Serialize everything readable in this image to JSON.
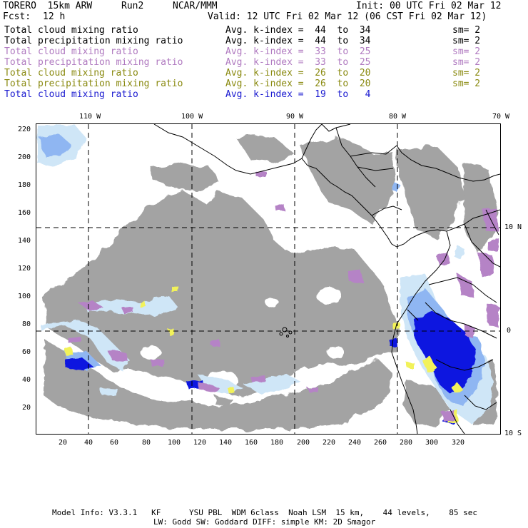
{
  "header": {
    "model": "TORERO  15km ARW",
    "run": "Run2",
    "org": "NCAR/MMM",
    "init": "Init: 00 UTC Fri 02 Mar 12",
    "fcst_label": "Fcst:",
    "fcst_value": "12 h",
    "valid": "Valid: 12 UTC Fri 02 Mar 12 (06 CST Fri 02 Mar 12)"
  },
  "legend": [
    {
      "variable": "Total cloud mixing ratio",
      "avg": "Avg. k-index =  44  to  34",
      "sm": "sm= 2",
      "color": "#000000"
    },
    {
      "variable": "Total precipitation mixing ratio",
      "avg": "Avg. k-index =  44  to  34",
      "sm": "sm= 2",
      "color": "#000000"
    },
    {
      "variable": "Total cloud mixing ratio",
      "avg": "Avg. k-index =  33  to  25",
      "sm": "sm= 2",
      "color": "#b07ac0"
    },
    {
      "variable": "Total precipitation mixing ratio",
      "avg": "Avg. k-index =  33  to  25",
      "sm": "sm= 2",
      "color": "#b07ac0"
    },
    {
      "variable": "Total cloud mixing ratio",
      "avg": "Avg. k-index =  26  to  20",
      "sm": "sm= 2",
      "color": "#8a8a10"
    },
    {
      "variable": "Total precipitation mixing ratio",
      "avg": "Avg. k-index =  26  to  20",
      "sm": "sm= 2",
      "color": "#8a8a10"
    },
    {
      "variable": "Total cloud mixing ratio",
      "avg": "Avg. k-index =  19  to   4",
      "sm": "",
      "color": "#1a1ad0"
    }
  ],
  "map": {
    "top_axis": [
      "110 W",
      "100 W",
      "90 W",
      "80 W",
      "70 W"
    ],
    "right_axis": [
      "10 N",
      "0",
      "10 S"
    ],
    "left_axis": [
      "220",
      "200",
      "180",
      "160",
      "140",
      "120",
      "100",
      "80",
      "60",
      "40",
      "20"
    ],
    "bottom_axis": [
      "20",
      "40",
      "60",
      "80",
      "100",
      "120",
      "140",
      "160",
      "180",
      "200",
      "220",
      "240",
      "260",
      "280",
      "300",
      "320"
    ],
    "colors": {
      "cloud_gray": "#a3a3a3",
      "magenta": "#b583c6",
      "light_blue": "#cfe6f7",
      "mid_blue": "#8fb6f2",
      "deep_blue": "#0a14e0",
      "yellow": "#f2f25a",
      "lines": "#000000"
    }
  },
  "footer": {
    "line1": "Model Info: V3.3.1   KF      YSU PBL  WDM 6class  Noah LSM  15 km,    44 levels,    85 sec",
    "line2": "LW: Godd SW: Goddard DIFF: simple KM: 2D Smagor"
  }
}
